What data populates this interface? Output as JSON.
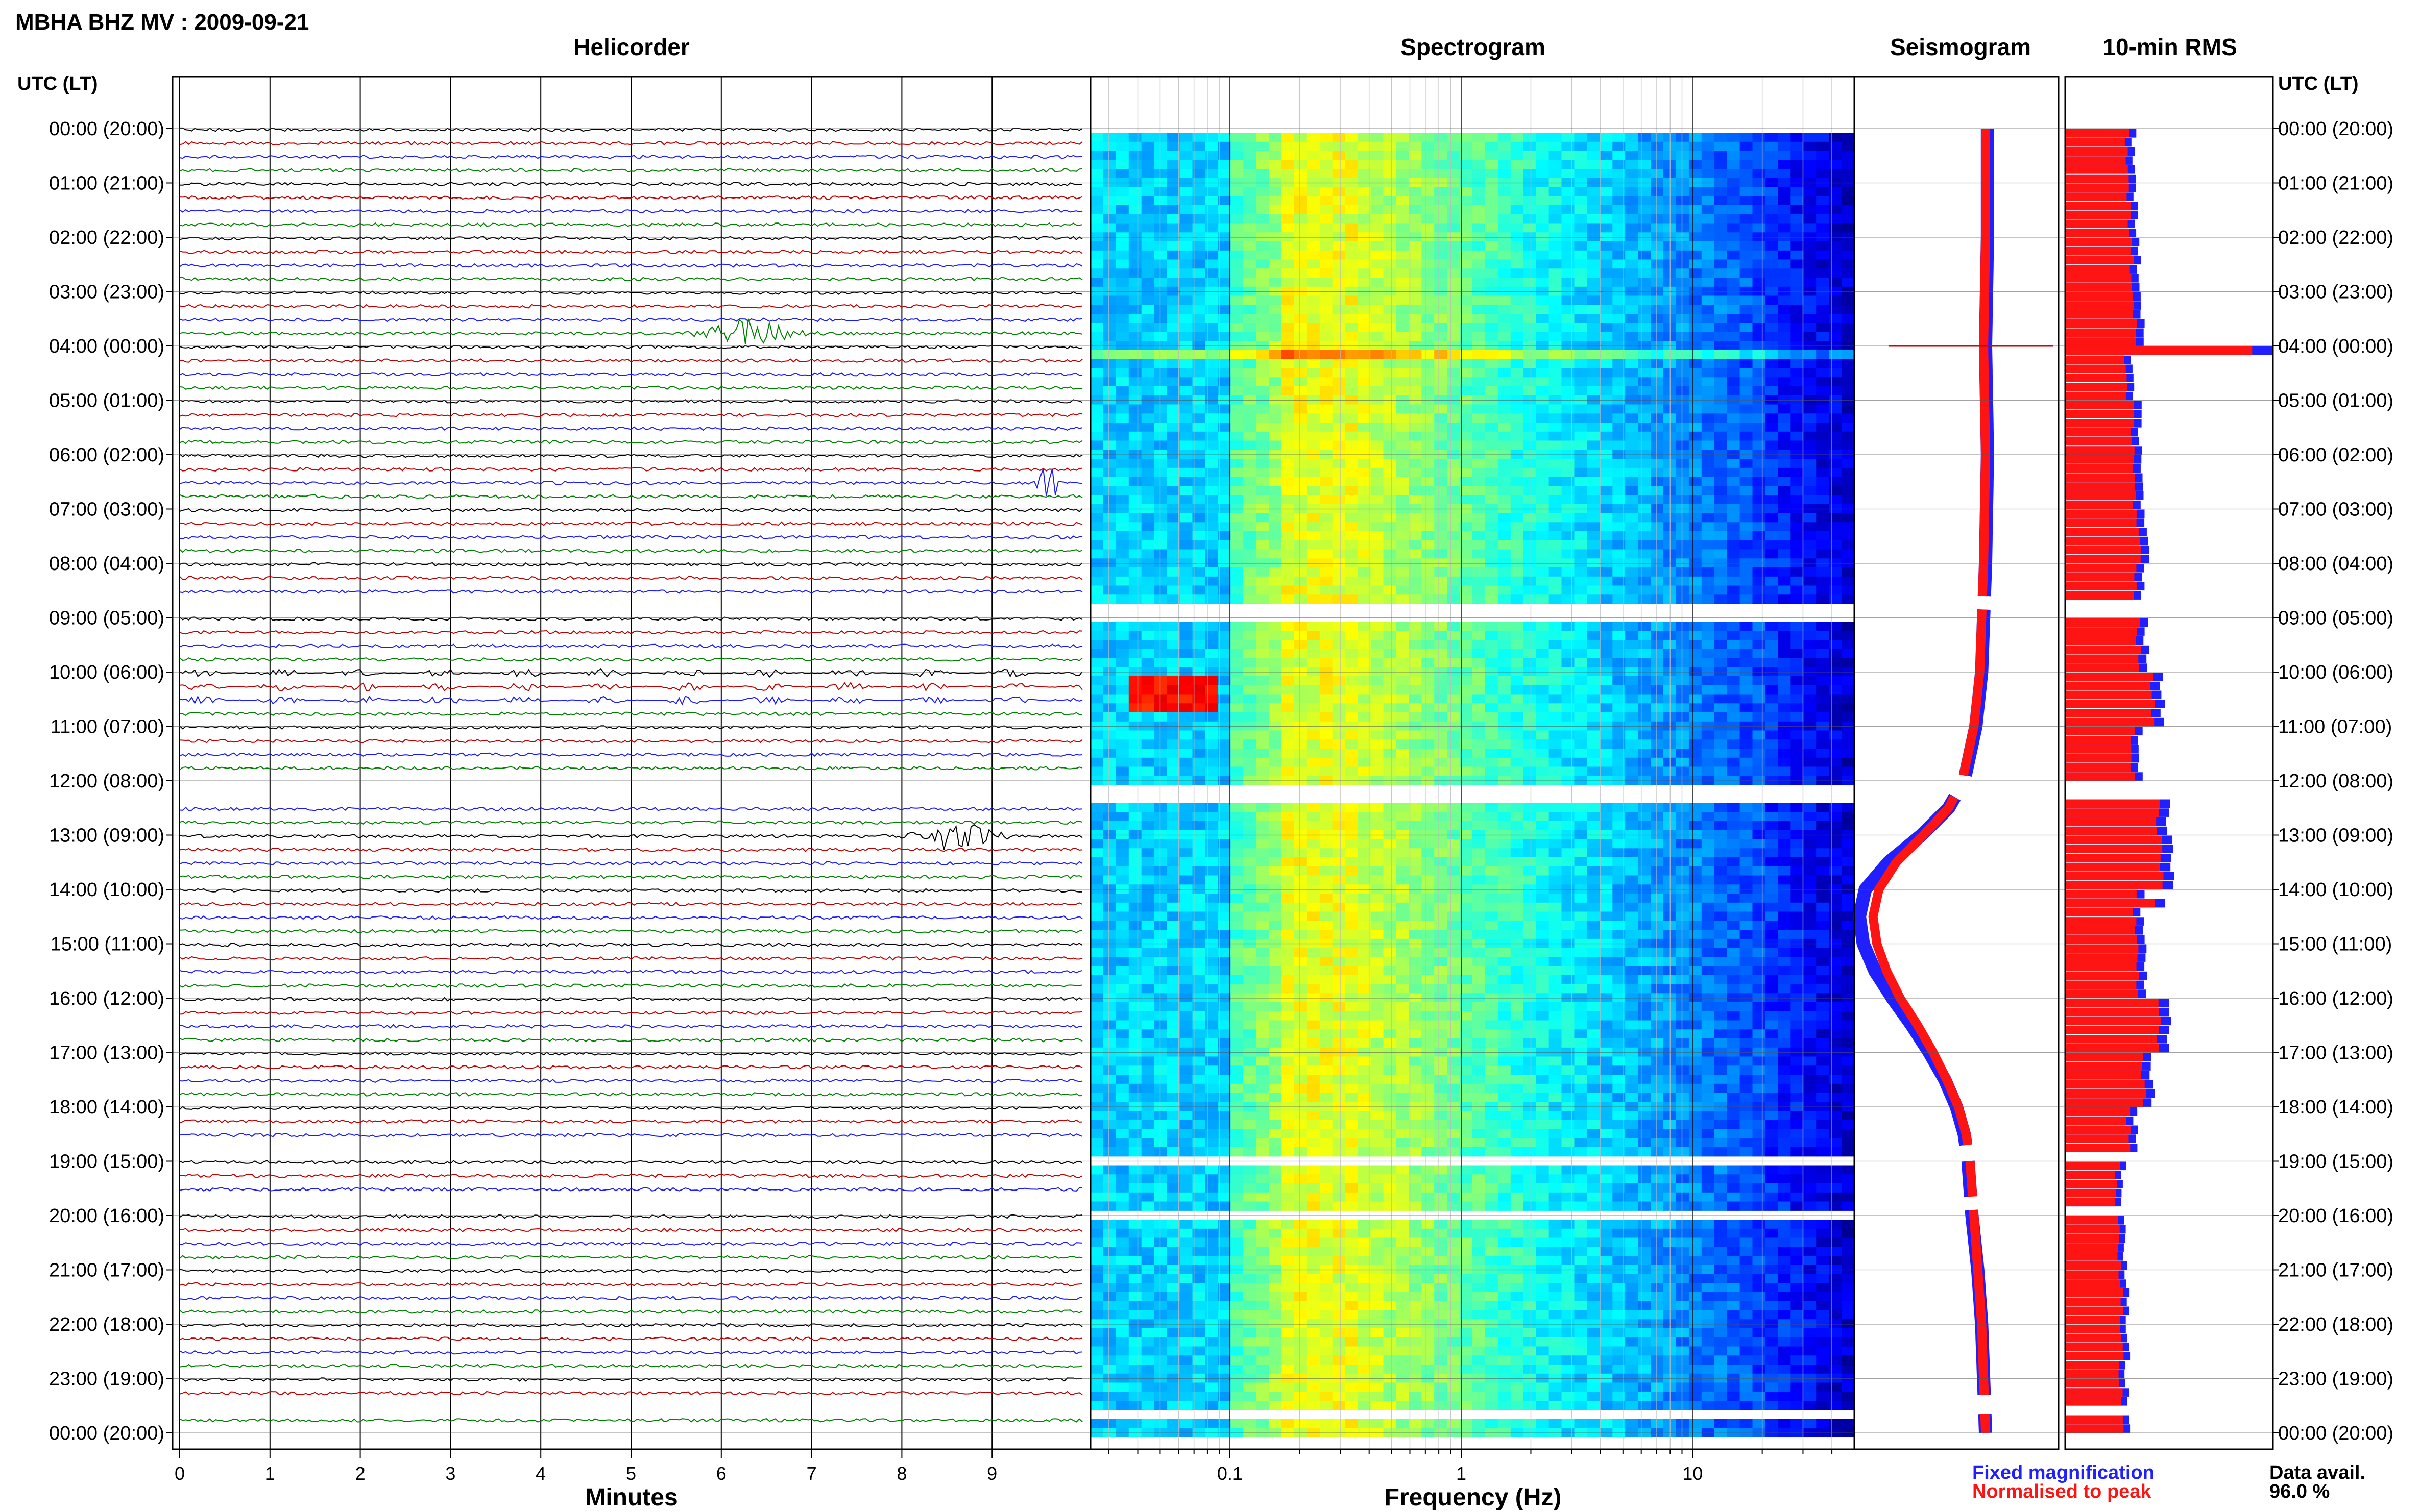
{
  "header": {
    "station_title": "MBHA BHZ MV : 2009-09-21",
    "utc_label_left": "UTC (LT)",
    "utc_label_right": "UTC (LT)"
  },
  "panels": {
    "helicorder": "Helicorder",
    "spectrogram": "Spectrogram",
    "seismogram": "Seismogram",
    "rms": "10-min RMS"
  },
  "axes": {
    "helicorder_xlabel": "Minutes",
    "spectrogram_xlabel": "Frequency (Hz)"
  },
  "legend": {
    "fixed": "Fixed magnification",
    "normalised": "Normalised to peak",
    "fixed_color": "#1f1fff",
    "normalised_color": "#ff1414"
  },
  "availability": {
    "label": "Data avail.",
    "value": "96.0 %"
  },
  "chart_data": [
    {
      "type": "line",
      "panel": "helicorder",
      "xlabel": "Minutes",
      "x_ticks": [
        "0",
        "1",
        "2",
        "3",
        "4",
        "5",
        "6",
        "7",
        "8",
        "9"
      ],
      "xlim": [
        0,
        10
      ],
      "row_ticks": [
        "00:00 (20:00)",
        "01:00 (21:00)",
        "02:00 (22:00)",
        "03:00 (23:00)",
        "04:00 (00:00)",
        "05:00 (01:00)",
        "06:00 (02:00)",
        "07:00 (03:00)",
        "08:00 (04:00)",
        "09:00 (05:00)",
        "10:00 (06:00)",
        "11:00 (07:00)",
        "12:00 (08:00)",
        "13:00 (09:00)",
        "14:00 (10:00)",
        "15:00 (11:00)",
        "16:00 (12:00)",
        "17:00 (13:00)",
        "18:00 (14:00)",
        "19:00 (15:00)",
        "20:00 (16:00)",
        "21:00 (17:00)",
        "22:00 (18:00)",
        "23:00 (19:00)",
        "00:00 (20:00)"
      ],
      "trace_colors": [
        "#000000",
        "#c00000",
        "#1a1aff",
        "#008000"
      ],
      "events": [
        {
          "hour": 3.83,
          "minute_start": 5.6,
          "minute_end": 7.5,
          "peak_minute": 6.3
        },
        {
          "hour": 6.5,
          "minute_start": 9.5,
          "minute_end": 9.7,
          "peak_minute": 9.55
        },
        {
          "hour": 12.95,
          "minute_start": 8.0,
          "minute_end": 9.2,
          "peak_minute": 8.6
        }
      ],
      "gaps": [
        {
          "hour_start": 8.65,
          "hour_end": 8.85
        },
        {
          "hour_start": 11.95,
          "hour_end": 12.3
        },
        {
          "hour_start": 18.75,
          "hour_end": 19.0
        },
        {
          "hour_start": 19.7,
          "hour_end": 19.9
        },
        {
          "hour_start": 23.35,
          "hour_end": 23.65
        }
      ]
    },
    {
      "type": "heatmap",
      "panel": "spectrogram",
      "xlabel": "Frequency (Hz)",
      "x_scale": "log",
      "xlim": [
        0.025,
        50
      ],
      "x_ticks": [
        "0.1",
        "1",
        "10"
      ],
      "colormap": "jet",
      "hours": 24
    },
    {
      "type": "line",
      "panel": "seismogram",
      "series": [
        {
          "name": "Fixed magnification",
          "color": "#1f1fff",
          "hours": [
            0,
            2,
            4,
            6,
            8,
            10,
            11,
            12,
            12.5,
            13,
            13.5,
            14,
            14.5,
            15,
            15.5,
            16,
            16.5,
            17,
            17.5,
            18,
            18.5,
            19,
            20,
            21,
            22,
            23,
            24
          ],
          "values": [
            0.66,
            0.66,
            0.65,
            0.66,
            0.65,
            0.63,
            0.6,
            0.54,
            0.46,
            0.32,
            0.15,
            0.03,
            0.0,
            0.02,
            0.08,
            0.17,
            0.27,
            0.36,
            0.44,
            0.5,
            0.54,
            0.56,
            0.58,
            0.61,
            0.63,
            0.64,
            0.65
          ]
        },
        {
          "name": "Normalised to peak",
          "color": "#ff1414",
          "hours": [
            0,
            2,
            4,
            6,
            8,
            10,
            11,
            12,
            12.5,
            13,
            13.5,
            14,
            14.5,
            15,
            15.5,
            16,
            16.5,
            17,
            17.5,
            18,
            18.5,
            19,
            20,
            21,
            22,
            23,
            24
          ],
          "values": [
            0.65,
            0.65,
            0.64,
            0.65,
            0.64,
            0.62,
            0.59,
            0.53,
            0.46,
            0.33,
            0.19,
            0.1,
            0.07,
            0.09,
            0.14,
            0.21,
            0.3,
            0.38,
            0.45,
            0.51,
            0.55,
            0.57,
            0.59,
            0.61,
            0.63,
            0.64,
            0.65
          ]
        }
      ]
    },
    {
      "type": "bar",
      "panel": "rms",
      "title": "10-min RMS",
      "bin_minutes": 10,
      "series": [
        {
          "name": "Fixed magnification",
          "color": "#1f1fff"
        },
        {
          "name": "Normalised to peak",
          "color": "#ff1414"
        }
      ],
      "hourly_level": [
        0.33,
        0.34,
        0.36,
        0.37,
        0.33,
        0.36,
        0.37,
        0.39,
        0.37,
        0.39,
        0.47,
        0.36,
        0.5,
        0.52,
        0.37,
        0.39,
        0.5,
        0.42,
        0.34,
        0.28,
        0.29,
        0.3,
        0.3,
        0.3
      ],
      "peaks": [
        {
          "hour": 4.0,
          "value": 1.0
        },
        {
          "hour": 14.2,
          "value": 0.48
        }
      ]
    }
  ]
}
